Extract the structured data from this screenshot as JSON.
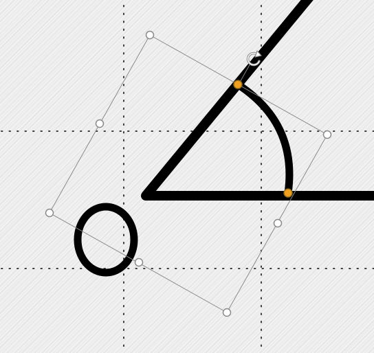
{
  "canvas": {
    "background": "#ececec",
    "guide_color": "#3a3a3a",
    "stroke_color": "#000000"
  },
  "shapes": {
    "angle": {
      "stroke": "#000000"
    },
    "letter_o": {
      "stroke": "#000000"
    }
  },
  "selection": {
    "frame_color": "#8a8a8a",
    "handle_fill": "#ffffff",
    "handle_stroke": "#8a8a8a",
    "adjust_handle_fill": "#f0a020",
    "adjust_handle_stroke": "#8a6a20",
    "rotate_icon": "rotate-icon"
  }
}
